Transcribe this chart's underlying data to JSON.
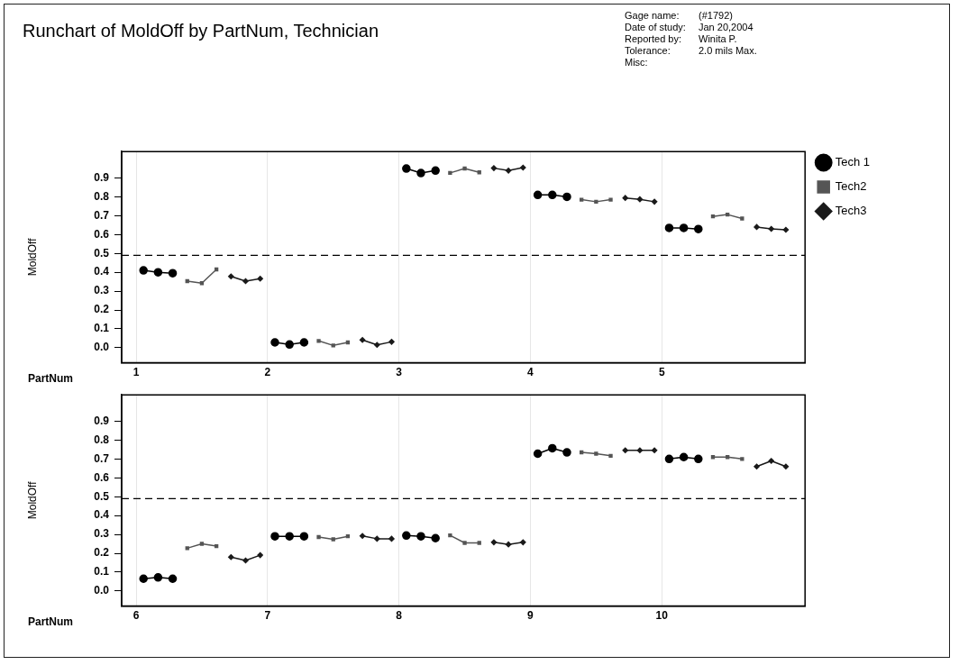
{
  "chart_data": [
    {
      "type": "line",
      "title": "Runchart of MoldOff by PartNum, Technician",
      "annotations": [
        "Gage name:",
        "(#1792)",
        "Date of study:",
        "Jan 20,2004",
        "Reported by:",
        "Winita P.",
        "Tolerance:",
        "2.0 mils Max.",
        "Misc:"
      ],
      "xlabel": "PartNum",
      "ylabel": "MoldOff",
      "series": [
        {
          "name": "Tech 1",
          "color": "#000000",
          "marker": "circle",
          "x": [
            1.056,
            1.167,
            1.278,
            1.6,
            2.056,
            2.167,
            2.278,
            2.6,
            3.056,
            3.167,
            3.278,
            3.6,
            4.056,
            4.167,
            4.278,
            4.6,
            5.056,
            5.167,
            5.278
          ],
          "values": [
            0.41,
            0.4,
            0.395,
            null,
            0.028,
            0.017,
            0.028,
            null,
            0.95,
            0.926,
            0.939,
            null,
            0.81,
            0.81,
            0.8,
            null,
            0.635,
            0.635,
            0.629
          ]
        },
        {
          "name": "Tech2",
          "color": "#555555",
          "marker": "square",
          "x": [
            1.389,
            1.5,
            1.611,
            1.9,
            2.389,
            2.5,
            2.611,
            2.9,
            3.389,
            3.5,
            3.611,
            3.9,
            4.389,
            4.5,
            4.611,
            4.9,
            5.389,
            5.5,
            5.611
          ],
          "values": [
            0.353,
            0.342,
            0.415,
            null,
            0.036,
            0.012,
            0.028,
            null,
            0.927,
            0.95,
            0.93,
            null,
            0.785,
            0.774,
            0.785,
            null,
            0.696,
            0.706,
            0.685
          ]
        },
        {
          "name": "Tech3",
          "color": "#1a1a1a",
          "marker": "diamond",
          "x": [
            1.722,
            1.833,
            1.944,
            2.3,
            2.722,
            2.833,
            2.944,
            3.3,
            3.722,
            3.833,
            3.944,
            4.3,
            4.722,
            4.833,
            4.944,
            5.3,
            5.722,
            5.833,
            5.944
          ],
          "values": [
            0.378,
            0.353,
            0.366,
            null,
            0.041,
            0.015,
            0.031,
            null,
            0.952,
            0.939,
            0.955,
            null,
            0.794,
            0.787,
            0.774,
            null,
            0.64,
            0.63,
            0.625
          ]
        }
      ],
      "xlim": [
        0.89,
        6.09
      ],
      "xticks": [
        1,
        2,
        3,
        4,
        5
      ],
      "ylim": [
        -0.08,
        1.04
      ],
      "yticks": [
        {
          "value": 0,
          "label": "0.0"
        },
        0.1,
        0.2,
        0.3,
        0.4,
        0.5,
        0.6,
        0.7,
        0.8,
        0.9
      ],
      "ref_lines": [
        {
          "axis": "y",
          "value": 0.49,
          "color": "#000000",
          "line_style": "dashed"
        }
      ],
      "grid": "x",
      "legend": "right",
      "line_style": "solid"
    },
    {
      "type": "line",
      "xlabel": "PartNum",
      "ylabel": "MoldOff",
      "series": [
        {
          "color": "#000000",
          "marker": "circle",
          "x": [
            6.056,
            6.167,
            6.278,
            6.6,
            7.056,
            7.167,
            7.278,
            7.6,
            8.056,
            8.167,
            8.278,
            8.6,
            9.056,
            9.167,
            9.278,
            9.6,
            10.056,
            10.167,
            10.278
          ],
          "values": [
            0.065,
            0.072,
            0.065,
            null,
            0.29,
            0.29,
            0.29,
            null,
            0.294,
            0.29,
            0.28,
            null,
            0.728,
            0.757,
            0.735,
            null,
            0.7,
            0.71,
            0.7
          ]
        },
        {
          "color": "#555555",
          "marker": "square",
          "x": [
            6.389,
            6.5,
            6.611,
            6.9,
            7.389,
            7.5,
            7.611,
            7.9,
            8.389,
            8.5,
            8.611,
            8.9,
            9.389,
            9.5,
            9.611,
            9.9,
            10.389,
            10.5,
            10.611
          ],
          "values": [
            0.227,
            0.25,
            0.238,
            null,
            0.286,
            0.274,
            0.29,
            null,
            0.295,
            0.255,
            0.255,
            null,
            0.735,
            0.728,
            0.717,
            null,
            0.71,
            0.71,
            0.7
          ]
        },
        {
          "color": "#1a1a1a",
          "marker": "diamond",
          "x": [
            6.722,
            6.833,
            6.944,
            7.3,
            7.722,
            7.833,
            7.944,
            8.3,
            8.722,
            8.833,
            8.944,
            9.3,
            9.722,
            9.833,
            9.944,
            10.3,
            10.722,
            10.833,
            10.944
          ],
          "values": [
            0.18,
            0.162,
            0.19,
            null,
            0.292,
            0.277,
            0.277,
            null,
            0.258,
            0.247,
            0.258,
            null,
            0.746,
            0.746,
            0.746,
            null,
            0.66,
            0.69,
            0.66
          ]
        }
      ],
      "xlim": [
        5.89,
        11.09
      ],
      "xticks": [
        6,
        7,
        8,
        9,
        10
      ],
      "ylim": [
        -0.08,
        1.04
      ],
      "yticks": [
        {
          "value": 0,
          "label": "0.0"
        },
        0.1,
        0.2,
        0.3,
        0.4,
        0.5,
        0.6,
        0.7,
        0.8,
        0.9
      ],
      "ref_lines": [
        {
          "axis": "y",
          "value": 0.49,
          "color": "#000000",
          "line_style": "dashed"
        }
      ],
      "grid": "x",
      "line_style": "solid"
    }
  ]
}
